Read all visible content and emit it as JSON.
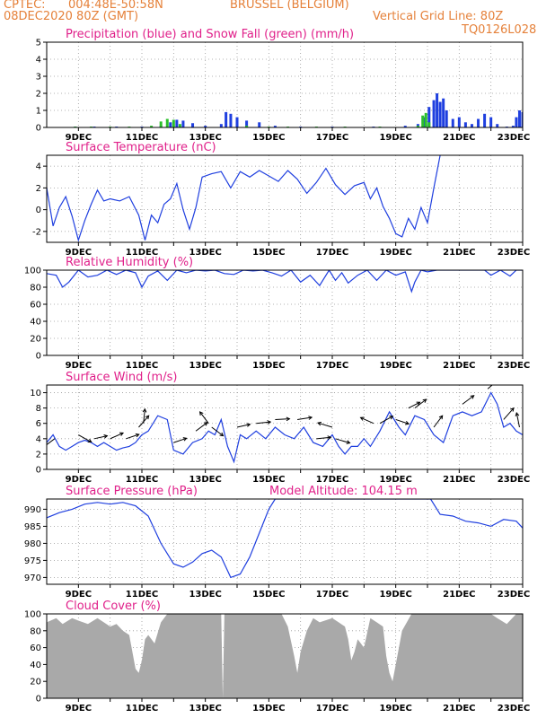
{
  "header": {
    "source": "CPTEC:",
    "coords": "004:48E-50:58N",
    "location": "BRUSSEL (BELGIUM)",
    "init": "08DEC2020 80Z (GMT)",
    "grid_line": "Vertical Grid Line: 80Z",
    "code": "TQ0126L028"
  },
  "colors": {
    "header_text": "#e5813a",
    "panel_title": "#e0208a",
    "series_line": "#1f3fdf",
    "precip": "#1f3fdf",
    "snow": "#2bc02b",
    "cloud_fill": "#a9a9a9",
    "wind_arrow": "#000000"
  },
  "chart_data": [
    {
      "id": "precipitation",
      "type": "bar",
      "title": "Precipitation (blue) and Snow Fall (green) (mm/h)",
      "x_unit": "day of December 2020",
      "xlim": [
        8.0,
        23.0
      ],
      "ylim": [
        0,
        5
      ],
      "yticks": [
        0,
        1,
        2,
        3,
        4,
        5
      ],
      "xtick_labels": [
        "9DEC",
        "11DEC",
        "13DEC",
        "15DEC",
        "17DEC",
        "19DEC",
        "21DEC",
        "23DEC"
      ],
      "grid": true,
      "series": [
        {
          "name": "Precipitation",
          "color": "blue",
          "x": [
            8.9,
            9.5,
            10.2,
            11.0,
            11.6,
            11.9,
            12.1,
            12.3,
            12.6,
            13.0,
            13.5,
            13.65,
            13.8,
            14.0,
            14.3,
            14.7,
            15.2,
            16.0,
            17.0,
            18.3,
            19.3,
            19.7,
            19.9,
            20.05,
            20.2,
            20.3,
            20.4,
            20.5,
            20.6,
            20.8,
            21.0,
            21.2,
            21.4,
            21.6,
            21.8,
            22.0,
            22.2,
            22.5,
            22.7,
            22.8,
            22.9,
            23.0
          ],
          "y": [
            0.05,
            0.05,
            0.05,
            0.05,
            0.1,
            0.3,
            0.45,
            0.4,
            0.25,
            0.1,
            0.2,
            0.9,
            0.8,
            0.6,
            0.4,
            0.3,
            0.1,
            0.05,
            0.05,
            0.05,
            0.1,
            0.2,
            0.6,
            1.2,
            1.6,
            2.0,
            1.5,
            1.7,
            1.0,
            0.5,
            0.6,
            0.3,
            0.2,
            0.5,
            0.8,
            0.6,
            0.2,
            0.05,
            0.1,
            0.6,
            1.0,
            0.9
          ]
        },
        {
          "name": "Snow Fall",
          "color": "green",
          "x": [
            8.9,
            9.4,
            10.0,
            10.6,
            11.3,
            11.6,
            11.8,
            12.0,
            12.2,
            14.3,
            15.0,
            15.6,
            16.5,
            17.4,
            18.5,
            19.7,
            19.85,
            19.95,
            20.05
          ],
          "y": [
            0.05,
            0.05,
            0.05,
            0.05,
            0.1,
            0.35,
            0.5,
            0.45,
            0.2,
            0.1,
            0.05,
            0.05,
            0.05,
            0.05,
            0.05,
            0.1,
            0.7,
            0.85,
            0.3
          ]
        }
      ]
    },
    {
      "id": "temperature",
      "type": "line",
      "title": "Surface Temperature (nC)",
      "xlim": [
        8.0,
        23.0
      ],
      "ylim": [
        -3,
        5
      ],
      "yticks": [
        -2,
        0,
        2,
        4
      ],
      "xtick_labels": [
        "9DEC",
        "11DEC",
        "13DEC",
        "15DEC",
        "17DEC",
        "19DEC",
        "21DEC",
        "23DEC"
      ],
      "grid": true,
      "series": [
        {
          "name": "Surface Temperature",
          "x": [
            8.0,
            8.2,
            8.4,
            8.6,
            8.8,
            9.0,
            9.2,
            9.4,
            9.6,
            9.8,
            10.0,
            10.3,
            10.6,
            10.9,
            11.1,
            11.3,
            11.5,
            11.7,
            11.9,
            12.1,
            12.3,
            12.5,
            12.7,
            12.9,
            13.2,
            13.5,
            13.8,
            14.1,
            14.4,
            14.7,
            15.0,
            15.3,
            15.6,
            15.9,
            16.2,
            16.5,
            16.8,
            17.1,
            17.4,
            17.7,
            18.0,
            18.2,
            18.4,
            18.6,
            18.8,
            19.0,
            19.2,
            19.4,
            19.6,
            19.8,
            20.0,
            20.2,
            20.4
          ],
          "y": [
            2.0,
            -1.5,
            0.2,
            1.2,
            -0.6,
            -2.8,
            -1.0,
            0.5,
            1.8,
            0.8,
            1.0,
            0.8,
            1.2,
            -0.5,
            -2.8,
            -0.5,
            -1.2,
            0.5,
            1.0,
            2.4,
            0.0,
            -1.8,
            0.2,
            3.0,
            3.3,
            3.5,
            2.0,
            3.5,
            3.0,
            3.6,
            3.1,
            2.6,
            3.6,
            2.8,
            1.5,
            2.5,
            3.8,
            2.3,
            1.4,
            2.2,
            2.5,
            1.0,
            2.0,
            0.3,
            -0.8,
            -2.2,
            -2.5,
            -0.8,
            -1.8,
            0.2,
            -1.2,
            2.0,
            5.0
          ]
        }
      ]
    },
    {
      "id": "humidity",
      "type": "line",
      "title": "Relative Humidity (%)",
      "xlim": [
        8.0,
        23.0
      ],
      "ylim": [
        0,
        100
      ],
      "yticks": [
        0,
        20,
        40,
        60,
        80,
        100
      ],
      "xtick_labels": [
        "9DEC",
        "11DEC",
        "13DEC",
        "15DEC",
        "17DEC",
        "19DEC",
        "21DEC",
        "23DEC"
      ],
      "grid": true,
      "series": [
        {
          "name": "Relative Humidity",
          "x": [
            8.0,
            8.3,
            8.5,
            8.7,
            9.0,
            9.3,
            9.6,
            9.9,
            10.2,
            10.5,
            10.8,
            11.0,
            11.2,
            11.5,
            11.8,
            12.1,
            12.4,
            12.7,
            13.0,
            13.3,
            13.6,
            13.9,
            14.2,
            14.5,
            14.8,
            15.1,
            15.4,
            15.7,
            16.0,
            16.3,
            16.6,
            16.9,
            17.1,
            17.3,
            17.5,
            17.8,
            18.1,
            18.4,
            18.7,
            19.0,
            19.3,
            19.5,
            19.6,
            19.8,
            20.0,
            20.3,
            21.0,
            21.5,
            21.8,
            22.0,
            22.3,
            22.6,
            22.8,
            23.0
          ],
          "y": [
            96,
            94,
            80,
            86,
            100,
            92,
            94,
            100,
            95,
            100,
            97,
            80,
            93,
            99,
            88,
            100,
            97,
            100,
            99,
            100,
            96,
            95,
            100,
            99,
            100,
            97,
            93,
            100,
            86,
            94,
            82,
            100,
            88,
            97,
            85,
            94,
            100,
            88,
            100,
            94,
            98,
            75,
            86,
            100,
            98,
            100,
            100,
            100,
            100,
            94,
            100,
            93,
            100,
            100
          ]
        }
      ]
    },
    {
      "id": "wind",
      "type": "line",
      "title": "Surface Wind (m/s)",
      "xlim": [
        8.0,
        23.0
      ],
      "ylim": [
        0,
        11
      ],
      "yticks": [
        0,
        2,
        4,
        6,
        8,
        10
      ],
      "xtick_labels": [
        "9DEC",
        "11DEC",
        "13DEC",
        "15DEC",
        "17DEC",
        "19DEC",
        "21DEC",
        "23DEC"
      ],
      "grid": true,
      "series": [
        {
          "name": "Wind Speed",
          "x": [
            8.0,
            8.2,
            8.4,
            8.6,
            8.8,
            9.0,
            9.2,
            9.4,
            9.6,
            9.8,
            10.0,
            10.2,
            10.4,
            10.6,
            10.8,
            11.0,
            11.2,
            11.5,
            11.8,
            12.0,
            12.3,
            12.6,
            12.9,
            13.1,
            13.3,
            13.5,
            13.7,
            13.9,
            14.1,
            14.3,
            14.6,
            14.9,
            15.2,
            15.5,
            15.8,
            16.1,
            16.4,
            16.7,
            17.0,
            17.2,
            17.4,
            17.6,
            17.8,
            18.0,
            18.2,
            18.5,
            18.8,
            19.1,
            19.3,
            19.6,
            19.9,
            20.2,
            20.5,
            20.8,
            21.1,
            21.4,
            21.7,
            22.0,
            22.2,
            22.4,
            22.6,
            22.8,
            23.0
          ],
          "y": [
            3.5,
            4.5,
            3.0,
            2.5,
            3.0,
            3.5,
            3.8,
            3.5,
            3.0,
            3.5,
            3.0,
            2.5,
            2.8,
            3.0,
            3.5,
            4.5,
            5.0,
            7.0,
            6.5,
            2.5,
            2.0,
            3.5,
            4.0,
            5.0,
            4.5,
            6.5,
            3.0,
            1.0,
            4.5,
            4.0,
            5.0,
            4.0,
            5.5,
            4.5,
            4.0,
            5.5,
            3.5,
            3.0,
            4.5,
            3.0,
            2.0,
            3.0,
            3.0,
            4.0,
            3.0,
            5.0,
            7.5,
            5.5,
            4.5,
            7.0,
            6.5,
            4.5,
            3.5,
            7.0,
            7.5,
            7.0,
            7.5,
            10.0,
            8.5,
            5.5,
            6.0,
            5.0,
            4.5
          ]
        }
      ],
      "arrows": [
        {
          "x": 8.25,
          "u": -0.8,
          "v": -0.6
        },
        {
          "x": 9.0,
          "u": 0.9,
          "v": -0.5
        },
        {
          "x": 9.5,
          "u": 0.9,
          "v": 0.2
        },
        {
          "x": 10.0,
          "u": 0.9,
          "v": 0.4
        },
        {
          "x": 10.5,
          "u": 0.9,
          "v": 0.3
        },
        {
          "x": 10.9,
          "u": 0.7,
          "v": 0.8
        },
        {
          "x": 11.05,
          "u": 0.1,
          "v": 1.0
        },
        {
          "x": 12.0,
          "u": 0.9,
          "v": 0.3
        },
        {
          "x": 12.7,
          "u": 0.8,
          "v": 0.6
        },
        {
          "x": 13.1,
          "u": -0.6,
          "v": 0.8
        },
        {
          "x": 13.2,
          "u": 0.8,
          "v": -0.6
        },
        {
          "x": 14.0,
          "u": 0.9,
          "v": 0.2
        },
        {
          "x": 14.6,
          "u": 1.0,
          "v": 0.1
        },
        {
          "x": 15.2,
          "u": 1.0,
          "v": 0.05
        },
        {
          "x": 15.9,
          "u": 1.0,
          "v": 0.15
        },
        {
          "x": 16.5,
          "u": 1.0,
          "v": 0.1
        },
        {
          "x": 17.0,
          "u": -1.0,
          "v": 0.3
        },
        {
          "x": 17.1,
          "u": 1.0,
          "v": -0.3
        },
        {
          "x": 18.3,
          "u": -0.9,
          "v": 0.4
        },
        {
          "x": 18.5,
          "u": 0.9,
          "v": 0.5
        },
        {
          "x": 19.0,
          "u": 0.9,
          "v": -0.3
        },
        {
          "x": 19.4,
          "u": 0.8,
          "v": 0.4
        },
        {
          "x": 19.6,
          "u": 0.8,
          "v": 0.6
        },
        {
          "x": 20.2,
          "u": 0.6,
          "v": 0.8
        },
        {
          "x": 21.1,
          "u": 0.8,
          "v": 0.6
        },
        {
          "x": 21.9,
          "u": 0.8,
          "v": 0.7
        },
        {
          "x": 22.4,
          "u": 0.7,
          "v": 0.8
        },
        {
          "x": 22.9,
          "u": -0.2,
          "v": 1.0
        }
      ]
    },
    {
      "id": "pressure",
      "type": "line",
      "title": "Surface Pressure (hPa)",
      "annotation": "Model Altitude: 104.15 m",
      "xlim": [
        8.0,
        23.0
      ],
      "ylim": [
        968,
        993
      ],
      "yticks": [
        970,
        975,
        980,
        985,
        990
      ],
      "xtick_labels": [
        "9DEC",
        "11DEC",
        "13DEC",
        "15DEC",
        "17DEC",
        "19DEC",
        "21DEC",
        "23DEC"
      ],
      "grid": true,
      "series": [
        {
          "name": "Surface Pressure",
          "x": [
            8.0,
            8.4,
            8.8,
            9.2,
            9.6,
            10.0,
            10.4,
            10.8,
            11.2,
            11.6,
            12.0,
            12.3,
            12.6,
            12.9,
            13.2,
            13.5,
            13.8,
            14.1,
            14.4,
            14.7,
            15.0,
            15.2,
            20.1,
            20.4,
            20.8,
            21.2,
            21.6,
            22.0,
            22.4,
            22.8,
            23.0
          ],
          "y": [
            987.5,
            989,
            990,
            991.5,
            992,
            991.5,
            992,
            991,
            988,
            980,
            974,
            973,
            974.5,
            977,
            978,
            976,
            970,
            971,
            976,
            983,
            990,
            993,
            993,
            988.5,
            988,
            986.5,
            986,
            985,
            987,
            986.5,
            984.5
          ]
        }
      ]
    },
    {
      "id": "cloud_cover",
      "type": "area",
      "title": "Cloud Cover (%)",
      "xlim": [
        8.0,
        23.0
      ],
      "ylim": [
        0,
        100
      ],
      "yticks": [
        0,
        20,
        40,
        60,
        80,
        100
      ],
      "xtick_labels": [
        "9DEC",
        "11DEC",
        "13DEC",
        "15DEC",
        "17DEC",
        "19DEC",
        "21DEC",
        "23DEC"
      ],
      "grid": true,
      "series": [
        {
          "name": "Cloud Cover",
          "x": [
            8.0,
            8.3,
            8.5,
            8.8,
            9.0,
            9.3,
            9.6,
            9.8,
            10.0,
            10.2,
            10.4,
            10.6,
            10.7,
            10.8,
            10.9,
            11.0,
            11.1,
            11.2,
            11.4,
            11.6,
            11.8,
            12.0,
            12.5,
            13.0,
            13.5,
            13.55,
            13.6,
            13.7,
            14.0,
            14.5,
            15.0,
            15.4,
            15.6,
            15.8,
            15.9,
            16.0,
            16.2,
            16.4,
            16.6,
            17.0,
            17.2,
            17.4,
            17.5,
            17.6,
            17.7,
            17.8,
            18.0,
            18.2,
            18.4,
            18.6,
            18.7,
            18.8,
            18.9,
            19.0,
            19.2,
            19.5,
            20.0,
            21.0,
            22.0,
            22.2,
            22.5,
            22.8,
            23.0
          ],
          "y": [
            90,
            95,
            88,
            95,
            92,
            88,
            95,
            90,
            85,
            88,
            80,
            75,
            55,
            35,
            30,
            45,
            70,
            75,
            65,
            90,
            100,
            100,
            100,
            100,
            100,
            0,
            100,
            100,
            100,
            100,
            100,
            100,
            85,
            50,
            30,
            55,
            80,
            95,
            90,
            95,
            90,
            85,
            70,
            45,
            55,
            70,
            60,
            95,
            90,
            85,
            50,
            30,
            20,
            40,
            80,
            100,
            100,
            100,
            100,
            95,
            88,
            100,
            100
          ]
        }
      ]
    }
  ]
}
